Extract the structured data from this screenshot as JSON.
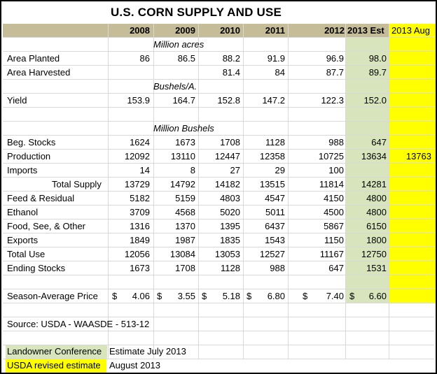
{
  "title": "U.S. CORN SUPPLY AND USE",
  "columns": [
    "2008",
    "2009",
    "2010",
    "2011",
    "2012",
    "2013 Est",
    "2013 Aug"
  ],
  "units": {
    "acres": "Million acres",
    "yield": "Bushels/A.",
    "bushels": "Million Bushels"
  },
  "rows": {
    "area_planted": {
      "label": "Area Planted",
      "values": [
        "86",
        "86.5",
        "88.2",
        "91.9",
        "96.9",
        "98.0",
        ""
      ]
    },
    "area_harvested": {
      "label": "Area Harvested",
      "values": [
        "",
        "",
        "81.4",
        "84",
        "87.7",
        "89.7",
        ""
      ]
    },
    "yield": {
      "label": "Yield",
      "values": [
        "153.9",
        "164.7",
        "152.8",
        "147.2",
        "122.3",
        "152.0",
        ""
      ]
    },
    "beg_stocks": {
      "label": "Beg. Stocks",
      "values": [
        "1624",
        "1673",
        "1708",
        "1128",
        "988",
        "647",
        ""
      ]
    },
    "production": {
      "label": "Production",
      "values": [
        "12092",
        "13110",
        "12447",
        "12358",
        "10725",
        "13634",
        "13763"
      ]
    },
    "imports": {
      "label": "Imports",
      "values": [
        "14",
        "8",
        "27",
        "29",
        "100",
        "",
        ""
      ]
    },
    "total_supply": {
      "label": "Total Supply",
      "values": [
        "13729",
        "14792",
        "14182",
        "13515",
        "11814",
        "14281",
        ""
      ]
    },
    "feed_residual": {
      "label": "Feed & Residual",
      "values": [
        "5182",
        "5159",
        "4803",
        "4547",
        "4150",
        "4800",
        ""
      ]
    },
    "ethanol": {
      "label": "Ethanol",
      "values": [
        "3709",
        "4568",
        "5020",
        "5011",
        "4500",
        "4800",
        ""
      ]
    },
    "food_seed_other": {
      "label": "Food, See, & Other",
      "values": [
        "1316",
        "1370",
        "1395",
        "6437",
        "5867",
        "6150",
        ""
      ]
    },
    "exports": {
      "label": "Exports",
      "values": [
        "1849",
        "1987",
        "1835",
        "1543",
        "1150",
        "1800",
        ""
      ]
    },
    "total_use": {
      "label": "Total Use",
      "values": [
        "12056",
        "13084",
        "13053",
        "12527",
        "11167",
        "12750",
        ""
      ]
    },
    "ending_stocks": {
      "label": "Ending Stocks",
      "values": [
        "1673",
        "1708",
        "1128",
        "988",
        "647",
        "1531",
        ""
      ]
    },
    "price": {
      "label": "Season-Average Price",
      "currency": "$",
      "values": [
        "4.06",
        "3.55",
        "5.18",
        "6.80",
        "7.40",
        "6.60",
        ""
      ]
    }
  },
  "source": "Source: USDA - WAASDE - 513-12",
  "legend": {
    "conference_swatch": "Landowner Conference",
    "conference_text": "Estimate July 2013",
    "usda_swatch": "USDA revised estimate",
    "usda_text": "August 2013"
  },
  "colors": {
    "header_bg": "#c4bd97",
    "estimate_bg": "#d8e4bc",
    "usda_bg": "#ffff00",
    "gridline": "#d9d9d9"
  }
}
